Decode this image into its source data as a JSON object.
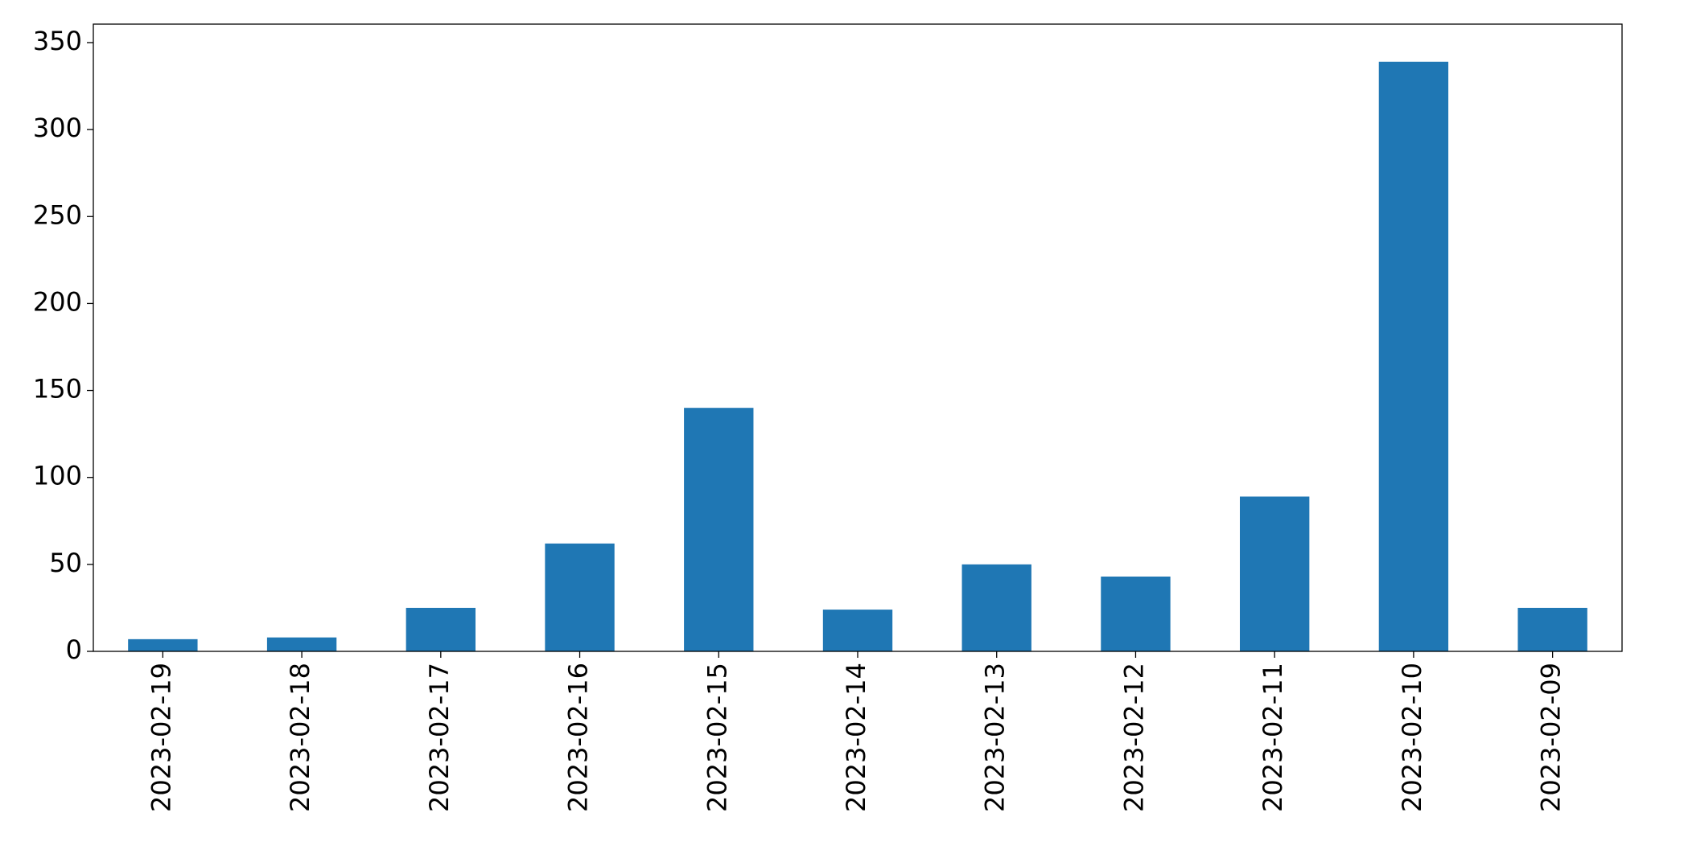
{
  "chart_data": {
    "type": "bar",
    "categories": [
      "2023-02-19",
      "2023-02-18",
      "2023-02-17",
      "2023-02-16",
      "2023-02-15",
      "2023-02-14",
      "2023-02-13",
      "2023-02-12",
      "2023-02-11",
      "2023-02-10",
      "2023-02-09"
    ],
    "values": [
      7,
      8,
      25,
      62,
      140,
      24,
      50,
      43,
      89,
      339,
      25
    ],
    "color": "#1f77b4",
    "ylim": [
      0,
      356
    ],
    "yticks": [
      0,
      50,
      100,
      150,
      200,
      250,
      300,
      350
    ],
    "grid": false
  }
}
